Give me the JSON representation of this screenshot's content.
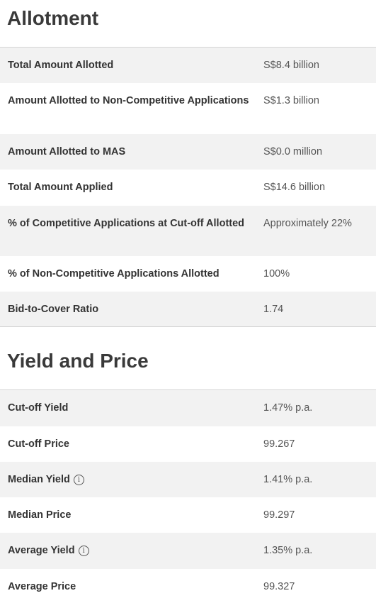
{
  "allotment": {
    "title": "Allotment",
    "rows": [
      {
        "label": "Total Amount Allotted",
        "value": "S$8.4 billion"
      },
      {
        "label": "Amount Allotted to Non-Competitive Applications",
        "value": "S$1.3 billion"
      },
      {
        "label": "Amount Allotted to MAS",
        "value": "S$0.0 million"
      },
      {
        "label": "Total Amount Applied",
        "value": "S$14.6 billion"
      },
      {
        "label": "% of Competitive Applications at Cut-off Allotted",
        "value": "Approximately 22%"
      },
      {
        "label": "% of Non-Competitive Applications Allotted",
        "value": "100%"
      },
      {
        "label": "Bid-to-Cover Ratio",
        "value": "1.74"
      }
    ]
  },
  "yield_price": {
    "title": "Yield and Price",
    "rows": [
      {
        "label": "Cut-off Yield",
        "value": "1.47% p.a."
      },
      {
        "label": "Cut-off Price",
        "value": "99.267"
      },
      {
        "label": "Median Yield",
        "value": "1.41% p.a."
      },
      {
        "label": "Median Price",
        "value": "99.297"
      },
      {
        "label": "Average Yield",
        "value": "1.35% p.a."
      },
      {
        "label": "Average Price",
        "value": "99.327"
      }
    ]
  },
  "icons": {
    "info_glyph": "i"
  }
}
